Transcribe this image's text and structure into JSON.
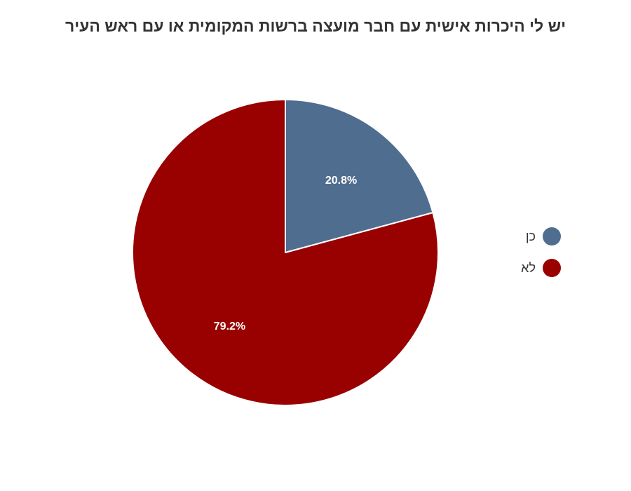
{
  "chart_data": {
    "type": "pie",
    "title": "יש לי היכרות אישית עם חבר מועצה ברשות המקומית או עם ראש העיר",
    "categories": [
      "כן",
      "לא"
    ],
    "values": [
      20.8,
      79.2
    ],
    "data_labels": [
      "20.8%",
      "79.2%"
    ],
    "colors": [
      "#4f6d8f",
      "#990000"
    ],
    "start": "12 o'clock, clockwise",
    "legend_placement": "right"
  }
}
